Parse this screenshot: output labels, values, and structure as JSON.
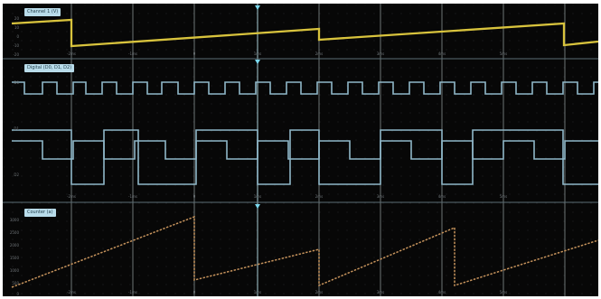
{
  "ui": {
    "panels": [
      {
        "label": "Channel 1 (V)",
        "axis_labels": [
          "20",
          "10",
          "0",
          "-10",
          "-20"
        ],
        "time_labels": [
          "-2ms",
          "-1ms",
          "0",
          "1ms",
          "2ms",
          "3ms",
          "4ms",
          "5ms"
        ]
      },
      {
        "label": "Digital (D0, D1, D2)",
        "axis_labels": [
          "D0",
          "D1",
          "D2"
        ],
        "time_labels": [
          "-2ms",
          "-1ms",
          "0",
          "1ms",
          "2ms",
          "3ms",
          "4ms",
          "5ms"
        ]
      },
      {
        "label": "Counter (a)",
        "axis_labels": [
          "3000",
          "2500",
          "2000",
          "1500",
          "1000",
          "500",
          "0"
        ],
        "time_labels": [
          "-2ms",
          "-1ms",
          "0",
          "1ms",
          "2ms",
          "3ms",
          "4ms",
          "5ms"
        ]
      }
    ],
    "colors": {
      "analog": "#d9c43e",
      "digital": "#8db8c9",
      "counter": "#c6935c",
      "grid": "#7b8788",
      "cursor": "#a8dfeb"
    },
    "icons": {
      "trigger_marker": "triangle-down-icon"
    }
  },
  "chart_data": [
    {
      "type": "line",
      "title": "Channel 1 (V)",
      "xlabel": "",
      "ylabel": "",
      "x": [
        -2,
        0,
        0,
        4,
        4,
        5
      ],
      "series": [
        {
          "name": "Channel 1 (V)",
          "values": [
            12,
            16,
            -8,
            18,
            -12,
            -10
          ]
        }
      ],
      "ylim": [
        -20,
        20
      ],
      "grid": true,
      "legend": "none"
    },
    {
      "type": "line",
      "title": "Digital (D0, D1, D2)",
      "x": [
        -2,
        -1.5,
        -1,
        -0.5,
        0,
        0.5,
        1,
        1.5,
        2,
        2.5,
        3,
        3.5,
        4,
        4.5,
        5
      ],
      "series": [
        {
          "name": "D0",
          "values": [
            1,
            0,
            1,
            0,
            1,
            0,
            1,
            0,
            1,
            0,
            1,
            0,
            1,
            0,
            1
          ]
        },
        {
          "name": "D1",
          "values": [
            1,
            0,
            1,
            0,
            1,
            0,
            1,
            0,
            1,
            0,
            1,
            0,
            1,
            0,
            1
          ]
        },
        {
          "name": "D2",
          "values": [
            1,
            1,
            0,
            1,
            1,
            0,
            1,
            1,
            0,
            1,
            1,
            0,
            1,
            1,
            0
          ]
        }
      ],
      "ylim": [
        0,
        3
      ],
      "grid": true,
      "legend": "top-left"
    },
    {
      "type": "line",
      "title": "Counter (a)",
      "x": [
        -2,
        0,
        0,
        2.1,
        2.1,
        4.2,
        4.2,
        5
      ],
      "series": [
        {
          "name": "Counter (a)",
          "values": [
            600,
            2600,
            250,
            2100,
            300,
            2200,
            300,
            900
          ]
        }
      ],
      "ylim": [
        0,
        3000
      ],
      "grid": true,
      "legend": "top-left"
    }
  ]
}
